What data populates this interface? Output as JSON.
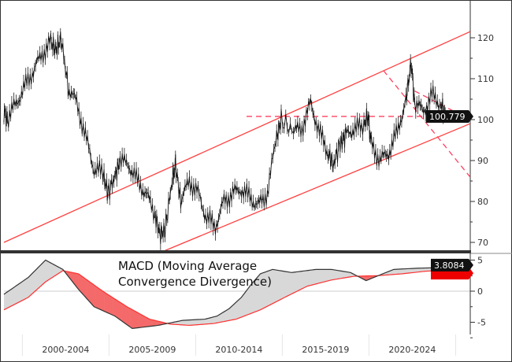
{
  "chart_data": [
    {
      "type": "line",
      "panel": "price",
      "yaxis_position": "right",
      "ylim": [
        68,
        124
      ],
      "yticks": [
        70,
        80,
        90,
        100,
        110,
        120
      ],
      "xlim": [
        1999.1,
        2026.2
      ],
      "last_value_label": "100.779",
      "series": [
        {
          "x": [
            1999.3,
            1999.5,
            2000,
            2000.5,
            2001,
            2001.5,
            2002,
            2002.3,
            2002.6,
            2003,
            2003.5,
            2004,
            2004.5,
            2005,
            2005.3,
            2005.7,
            2006,
            2006.5,
            2007,
            2007.5,
            2008,
            2008.3,
            2008.6,
            2009,
            2009.2,
            2009.5,
            2010,
            2010.5,
            2011,
            2011.5,
            2012,
            2012.5,
            2013,
            2013.5,
            2014,
            2014.5,
            2015,
            2015.3,
            2016,
            2016.5,
            2017,
            2017.5,
            2018,
            2018.3,
            2018.7,
            2019,
            2019.5,
            2020,
            2020.3,
            2020.5,
            2021,
            2021.5,
            2022,
            2022.5,
            2022.8,
            2023,
            2023.5,
            2024,
            2024.5,
            2024.8
          ],
          "y": [
            102,
            100,
            104,
            108,
            112,
            116,
            119,
            117,
            120,
            108,
            104,
            96,
            88,
            87,
            82,
            86,
            90,
            89,
            85,
            82,
            77,
            72,
            73,
            85,
            89,
            80,
            85,
            82,
            76,
            74,
            80,
            82,
            83,
            81,
            79,
            82,
            95,
            100,
            97,
            98,
            104,
            97,
            92,
            89,
            94,
            96,
            98,
            98,
            101,
            94,
            90,
            92,
            97,
            105,
            114,
            104,
            102,
            106,
            104,
            100.779
          ]
        }
      ],
      "annotations": [
        {
          "type": "channel-line",
          "color": "#ff4040",
          "from": [
            1999.3,
            70
          ],
          "to": [
            2026.2,
            121.5
          ]
        },
        {
          "type": "channel-line",
          "color": "#ff4040",
          "from": [
            2008.6,
            68
          ],
          "to": [
            2026.2,
            99
          ]
        },
        {
          "type": "dashed-horizontal",
          "color": "#ff4060",
          "y": 100.779,
          "from_x": 2013.3,
          "to_x": 2026.2
        },
        {
          "type": "dashed-line",
          "color": "#ff4060",
          "from": [
            2021.2,
            112
          ],
          "to": [
            2026.2,
            86
          ]
        },
        {
          "type": "dashed-line",
          "color": "#ff4060",
          "from": [
            2023.0,
            107
          ],
          "to": [
            2026.2,
            100
          ]
        }
      ]
    },
    {
      "type": "area",
      "panel": "macd",
      "title": "MACD (Moving Average Convergence Divergence)",
      "title_lines": [
        "MACD (Moving Average",
        "Convergence Divergence)"
      ],
      "yaxis_position": "right",
      "ylim": [
        -7.5,
        6
      ],
      "yticks": [
        -5,
        0,
        5
      ],
      "x_categories": [
        "2000-2004",
        "2005-2009",
        "2010-2014",
        "2015-2019",
        "2020-2024"
      ],
      "last_value_label": "3.8084",
      "colors": {
        "macd": "#333333",
        "signal": "#ff3030",
        "above_fill": "#d8d8d8",
        "below_fill": "#f46a6a"
      },
      "series": [
        {
          "role": "macd",
          "x": [
            1999.3,
            2000.7,
            2001.7,
            2002.7,
            2003.6,
            2004.5,
            2005.7,
            2006.7,
            2008.2,
            2009.6,
            2010.9,
            2011.6,
            2012.3,
            2013.0,
            2013.6,
            2014.1,
            2014.8,
            2015.9,
            2017.3,
            2018.2,
            2019.3,
            2020.2,
            2020.9,
            2021.8,
            2023.2,
            2024.8
          ],
          "y": [
            -0.5,
            2.2,
            5,
            3.5,
            0.3,
            -2.5,
            -4,
            -6,
            -5.5,
            -4.7,
            -4.5,
            -4,
            -2.8,
            -1,
            1.2,
            2.8,
            3.5,
            3,
            3.5,
            3.5,
            3,
            1.7,
            2.5,
            3.5,
            3.7,
            3.8084
          ]
        },
        {
          "role": "signal",
          "x": [
            1999.3,
            2000.7,
            2001.7,
            2002.7,
            2003.6,
            2005.0,
            2006.4,
            2007.7,
            2008.9,
            2010.0,
            2011.4,
            2012.7,
            2014.1,
            2015.5,
            2016.8,
            2018.2,
            2019.5,
            2020.9,
            2022.3,
            2023.6,
            2024.8
          ],
          "y": [
            -3,
            -1,
            1.5,
            3.3,
            2.8,
            0,
            -2.5,
            -4.5,
            -5.3,
            -5.5,
            -5.2,
            -4.5,
            -3,
            -1,
            0.8,
            1.8,
            2.4,
            2.5,
            2.8,
            3.2,
            3.4
          ]
        }
      ]
    }
  ]
}
